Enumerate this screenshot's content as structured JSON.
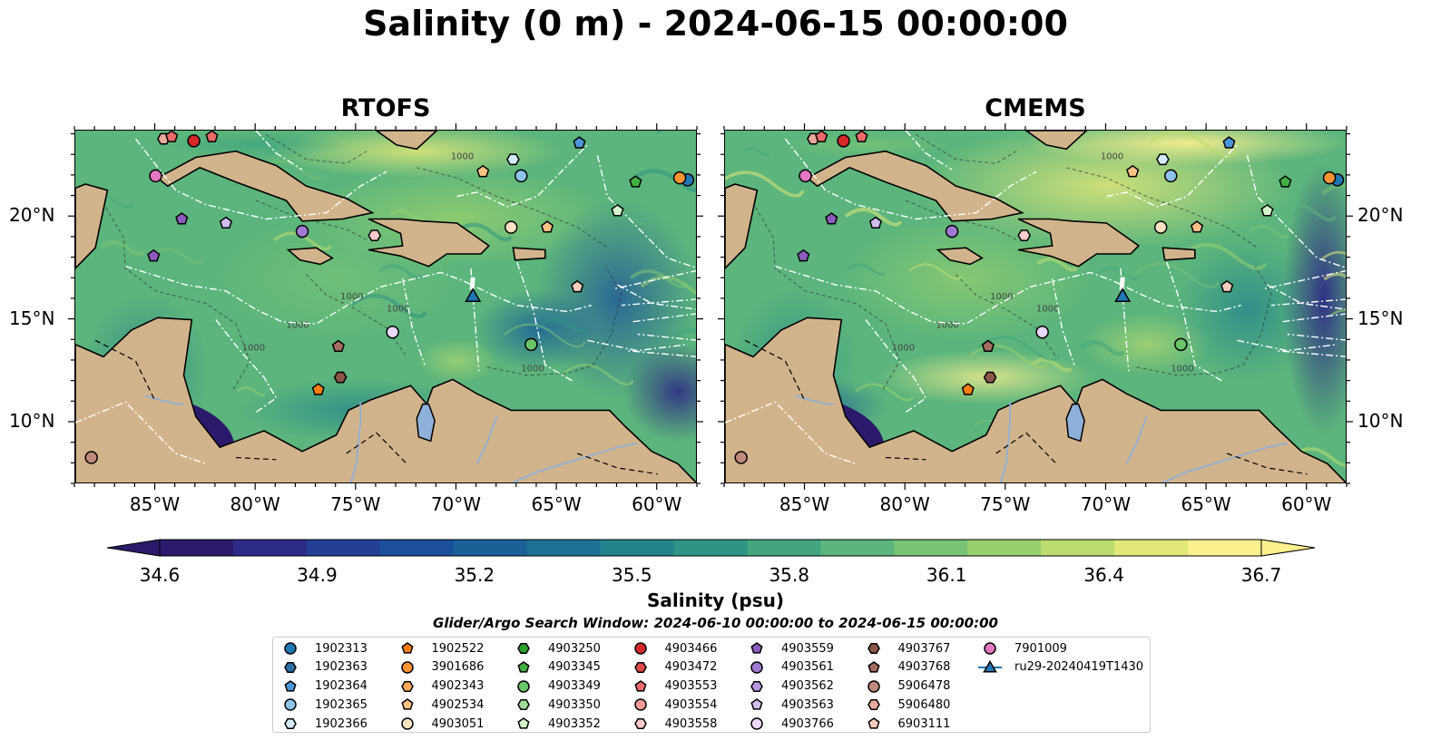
{
  "title": "Salinity (0 m) - 2024-06-15 00:00:00",
  "panels": [
    {
      "title": "RTOFS"
    },
    {
      "title": "CMEMS"
    }
  ],
  "map": {
    "lon_range": [
      -89,
      -58
    ],
    "lat_range": [
      7,
      24.2
    ],
    "lon_ticks": [
      "85°W",
      "80°W",
      "75°W",
      "70°W",
      "65°W",
      "60°W"
    ],
    "lat_ticks": [
      "20°N",
      "15°N",
      "10°N"
    ],
    "land_color": "#d2b48c",
    "river_color": "#8fb0d8",
    "contour_labels": [
      "1000",
      "1000",
      "1000",
      "1000",
      "1000",
      "1000"
    ]
  },
  "colorbar": {
    "label": "Salinity (psu)",
    "min": 34.6,
    "max": 36.7,
    "ticks": [
      "34.6",
      "34.9",
      "35.2",
      "35.5",
      "35.8",
      "36.1",
      "36.4",
      "36.7"
    ],
    "colors": [
      "#2b1a6b",
      "#2d2b86",
      "#233f96",
      "#1b4f9c",
      "#1a6198",
      "#1d7293",
      "#23838d",
      "#2e9485",
      "#42a57f",
      "#5bb57c",
      "#78c375",
      "#98d06e",
      "#bcdc6f",
      "#e2e779",
      "#fdf08f"
    ]
  },
  "search_window": "Glider/Argo Search Window: 2024-06-10 00:00:00 to 2024-06-15 00:00:00",
  "legend": [
    {
      "label": "1902313",
      "marker": "circle",
      "color": "#1f77b4"
    },
    {
      "label": "1902363",
      "marker": "hexagon",
      "color": "#2c6fa8"
    },
    {
      "label": "1902364",
      "marker": "pentagon",
      "color": "#4c95d8"
    },
    {
      "label": "1902365",
      "marker": "circle",
      "color": "#8ec3ea"
    },
    {
      "label": "1902366",
      "marker": "hexagon",
      "color": "#d4eaf8"
    },
    {
      "label": "1902522",
      "marker": "pentagon",
      "color": "#ff7f0e"
    },
    {
      "label": "3901686",
      "marker": "circle",
      "color": "#ff9433"
    },
    {
      "label": "4902343",
      "marker": "hexagon",
      "color": "#ffa95a"
    },
    {
      "label": "4902534",
      "marker": "pentagon",
      "color": "#ffc286"
    },
    {
      "label": "4903051",
      "marker": "circle",
      "color": "#ffe2c2"
    },
    {
      "label": "4903250",
      "marker": "hexagon",
      "color": "#2ca02c"
    },
    {
      "label": "4903345",
      "marker": "pentagon",
      "color": "#43b043"
    },
    {
      "label": "4903349",
      "marker": "circle",
      "color": "#6ac46a"
    },
    {
      "label": "4903350",
      "marker": "hexagon",
      "color": "#a1dc9a"
    },
    {
      "label": "4903352",
      "marker": "pentagon",
      "color": "#d6f5cc"
    },
    {
      "label": "4903466",
      "marker": "circle",
      "color": "#d62728"
    },
    {
      "label": "4903472",
      "marker": "hexagon",
      "color": "#e04848"
    },
    {
      "label": "4903553",
      "marker": "pentagon",
      "color": "#ea6a6a"
    },
    {
      "label": "4903554",
      "marker": "circle",
      "color": "#f39a9a"
    },
    {
      "label": "4903558",
      "marker": "hexagon",
      "color": "#fbcaca"
    },
    {
      "label": "4903559",
      "marker": "pentagon",
      "color": "#8c5bbd"
    },
    {
      "label": "4903561",
      "marker": "circle",
      "color": "#a07ad0"
    },
    {
      "label": "4903562",
      "marker": "hexagon",
      "color": "#b897de"
    },
    {
      "label": "4903563",
      "marker": "pentagon",
      "color": "#d2bdef"
    },
    {
      "label": "4903766",
      "marker": "circle",
      "color": "#ead8f8"
    },
    {
      "label": "4903767",
      "marker": "hexagon",
      "color": "#8c564b"
    },
    {
      "label": "4903768",
      "marker": "pentagon",
      "color": "#a56e60"
    },
    {
      "label": "5906478",
      "marker": "circle",
      "color": "#c0897b"
    },
    {
      "label": "5906480",
      "marker": "hexagon",
      "color": "#e6ab9a"
    },
    {
      "label": "6903111",
      "marker": "pentagon",
      "color": "#f6cdbb"
    },
    {
      "label": "7901009",
      "marker": "circle",
      "color": "#e377c2"
    },
    {
      "label": "ru29-20240419T1430",
      "marker": "triangle",
      "color": "#1f77b4"
    }
  ],
  "floats": [
    {
      "id": "5906478",
      "lon": -88.2,
      "lat": 8.3
    },
    {
      "id": "7901009",
      "lon": -85.0,
      "lat": 22.0
    },
    {
      "id": "5906480",
      "lon": -84.6,
      "lat": 23.8
    },
    {
      "id": "4903553",
      "lon": -84.2,
      "lat": 23.9
    },
    {
      "id": "4903466",
      "lon": -83.1,
      "lat": 23.7
    },
    {
      "id": "4903553",
      "lon": -82.2,
      "lat": 23.9
    },
    {
      "id": "4903559",
      "lon": -83.7,
      "lat": 19.9
    },
    {
      "id": "4903563",
      "lon": -81.5,
      "lat": 19.7
    },
    {
      "id": "4903559",
      "lon": -85.1,
      "lat": 18.1
    },
    {
      "id": "4903561",
      "lon": -77.7,
      "lat": 19.3
    },
    {
      "id": "4903558",
      "lon": -74.1,
      "lat": 19.1
    },
    {
      "id": "4903766",
      "lon": -73.2,
      "lat": 14.4
    },
    {
      "id": "4903768",
      "lon": -75.9,
      "lat": 13.7
    },
    {
      "id": "4903767",
      "lon": -75.8,
      "lat": 12.2
    },
    {
      "id": "1902522",
      "lon": -76.9,
      "lat": 11.6
    },
    {
      "id": "4902534",
      "lon": -68.7,
      "lat": 22.2
    },
    {
      "id": "1902366",
      "lon": -67.2,
      "lat": 22.8
    },
    {
      "id": "1902365",
      "lon": -66.8,
      "lat": 22.0
    },
    {
      "id": "1902364",
      "lon": -63.9,
      "lat": 23.6
    },
    {
      "id": "4903051",
      "lon": -67.3,
      "lat": 19.5
    },
    {
      "id": "4902534",
      "lon": -65.5,
      "lat": 19.5
    },
    {
      "id": "4903345",
      "lon": -61.1,
      "lat": 21.7
    },
    {
      "id": "4903352",
      "lon": -62.0,
      "lat": 20.3
    },
    {
      "id": "6903111",
      "lon": -64.0,
      "lat": 16.6
    },
    {
      "id": "4903349",
      "lon": -66.3,
      "lat": 13.8
    },
    {
      "id": "1902313",
      "lon": -58.5,
      "lat": 21.8
    },
    {
      "id": "3901686",
      "lon": -58.9,
      "lat": 21.9
    }
  ],
  "glider": {
    "id": "ru29-20240419T1430",
    "lon": -69.2,
    "lat": 16.1
  }
}
